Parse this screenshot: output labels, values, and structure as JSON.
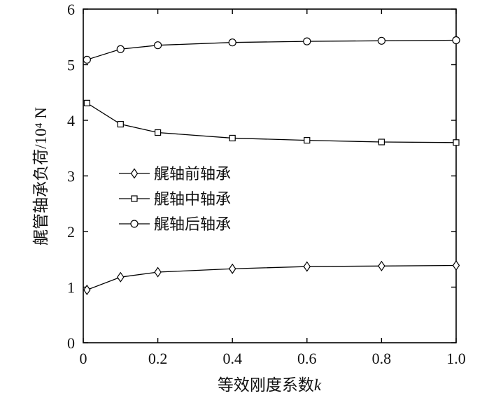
{
  "chart_data": {
    "type": "line",
    "title": "",
    "xlabel": "等效刚度系数",
    "xlabel_var": "k",
    "ylabel": "艉管轴承负荷/10⁴ N",
    "xlim": [
      0,
      1.0
    ],
    "ylim": [
      0,
      6
    ],
    "xticks": [
      "0",
      "0.2",
      "0.4",
      "0.6",
      "0.8",
      "1.0"
    ],
    "yticks": [
      "0",
      "1",
      "2",
      "3",
      "4",
      "5",
      "6"
    ],
    "grid": false,
    "legend_position": "left-middle",
    "series": [
      {
        "name": "艉轴前轴承",
        "marker": "diamond",
        "x": [
          0.01,
          0.1,
          0.2,
          0.4,
          0.6,
          0.8,
          1.0
        ],
        "values": [
          0.95,
          1.18,
          1.27,
          1.33,
          1.37,
          1.38,
          1.39
        ]
      },
      {
        "name": "艉轴中轴承",
        "marker": "square",
        "x": [
          0.01,
          0.1,
          0.2,
          0.4,
          0.6,
          0.8,
          1.0
        ],
        "values": [
          4.31,
          3.93,
          3.78,
          3.68,
          3.64,
          3.61,
          3.6
        ]
      },
      {
        "name": "艉轴后轴承",
        "marker": "circle",
        "x": [
          0.01,
          0.1,
          0.2,
          0.4,
          0.6,
          0.8,
          1.0
        ],
        "values": [
          5.09,
          5.28,
          5.35,
          5.4,
          5.42,
          5.43,
          5.44
        ]
      }
    ]
  }
}
